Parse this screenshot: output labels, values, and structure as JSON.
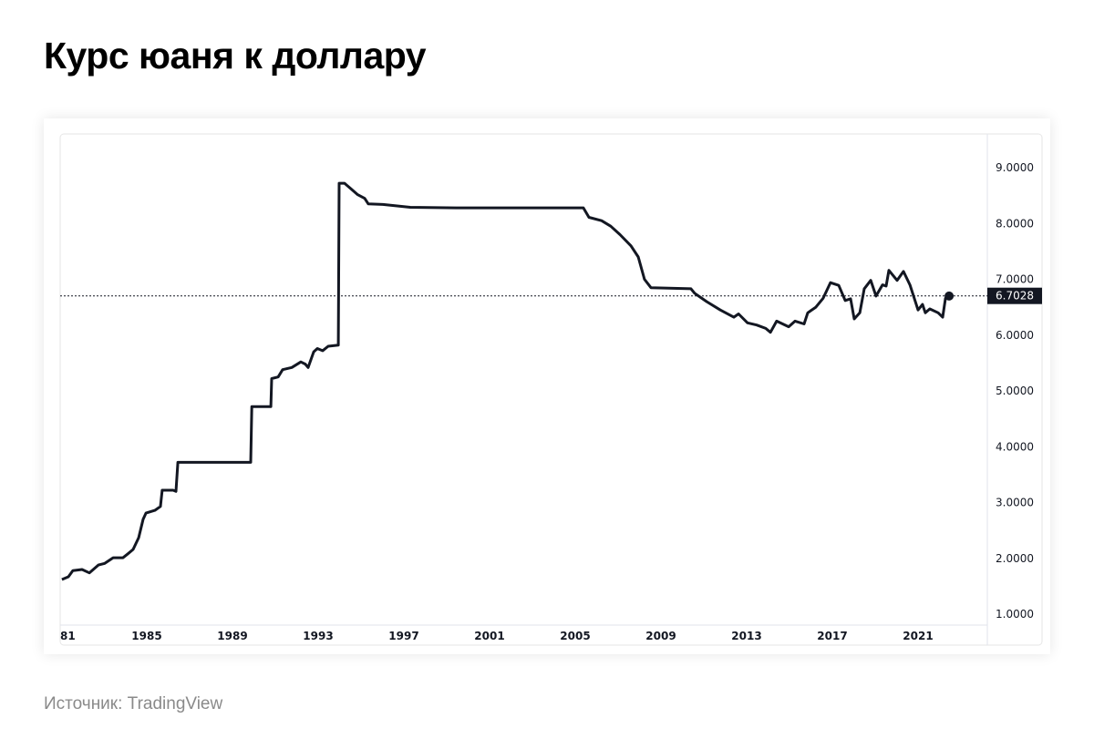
{
  "title": "Курс юаня к доллару",
  "source": "Источник: TradingView",
  "chart_data": {
    "type": "line",
    "title": "Курс юаня к доллару",
    "xlabel": "",
    "ylabel": "",
    "x_tick_labels": [
      "81",
      "1985",
      "1989",
      "1993",
      "1997",
      "2001",
      "2005",
      "2009",
      "2013",
      "2017",
      "2021"
    ],
    "x_tick_years": [
      1981,
      1985,
      1989,
      1993,
      1997,
      2001,
      2005,
      2009,
      2013,
      2017,
      2021
    ],
    "y_tick_labels": [
      "9.0000",
      "8.0000",
      "7.0000",
      "6.0000",
      "5.0000",
      "4.0000",
      "3.0000",
      "2.0000",
      "1.0000"
    ],
    "y_ticks": [
      9,
      8,
      7,
      6,
      5,
      4,
      3,
      2,
      1
    ],
    "xlim": [
      1981,
      2024.5
    ],
    "ylim": [
      1,
      9
    ],
    "grid": false,
    "line_color": "#131722",
    "last_value_label": "6.7028",
    "last_value": 6.7028,
    "series": [
      {
        "points": [
          [
            1981.04,
            1.62
          ],
          [
            1981.34,
            1.67
          ],
          [
            1981.55,
            1.78
          ],
          [
            1981.98,
            1.8
          ],
          [
            1982.32,
            1.74
          ],
          [
            1982.74,
            1.88
          ],
          [
            1983.04,
            1.91
          ],
          [
            1983.43,
            2.01
          ],
          [
            1983.89,
            2.01
          ],
          [
            1984.11,
            2.08
          ],
          [
            1984.36,
            2.16
          ],
          [
            1984.62,
            2.37
          ],
          [
            1984.83,
            2.7
          ],
          [
            1984.96,
            2.81
          ],
          [
            1985.38,
            2.86
          ],
          [
            1985.64,
            2.93
          ],
          [
            1985.72,
            3.22
          ],
          [
            1986.23,
            3.22
          ],
          [
            1986.36,
            3.2
          ],
          [
            1986.45,
            3.72
          ],
          [
            1989.85,
            3.72
          ],
          [
            1989.9,
            4.72
          ],
          [
            1990.79,
            4.72
          ],
          [
            1990.83,
            5.22
          ],
          [
            1991.13,
            5.25
          ],
          [
            1991.34,
            5.38
          ],
          [
            1991.77,
            5.42
          ],
          [
            1992.19,
            5.52
          ],
          [
            1992.4,
            5.48
          ],
          [
            1992.53,
            5.42
          ],
          [
            1992.79,
            5.7
          ],
          [
            1992.96,
            5.76
          ],
          [
            1993.21,
            5.72
          ],
          [
            1993.47,
            5.8
          ],
          [
            1993.94,
            5.82
          ],
          [
            1993.98,
            8.72
          ],
          [
            1994.23,
            8.72
          ],
          [
            1994.53,
            8.62
          ],
          [
            1994.83,
            8.52
          ],
          [
            1995.17,
            8.45
          ],
          [
            1995.34,
            8.35
          ],
          [
            1996.02,
            8.34
          ],
          [
            1997.3,
            8.29
          ],
          [
            1999.43,
            8.28
          ],
          [
            2005.38,
            8.28
          ],
          [
            2005.64,
            8.11
          ],
          [
            2006.23,
            8.05
          ],
          [
            2006.66,
            7.95
          ],
          [
            2007.09,
            7.8
          ],
          [
            2007.6,
            7.6
          ],
          [
            2007.94,
            7.4
          ],
          [
            2008.23,
            7.0
          ],
          [
            2008.53,
            6.85
          ],
          [
            2010.4,
            6.83
          ],
          [
            2010.57,
            6.75
          ],
          [
            2011.13,
            6.6
          ],
          [
            2011.77,
            6.45
          ],
          [
            2012.4,
            6.32
          ],
          [
            2012.62,
            6.38
          ],
          [
            2013.04,
            6.22
          ],
          [
            2013.47,
            6.18
          ],
          [
            2013.89,
            6.12
          ],
          [
            2014.11,
            6.05
          ],
          [
            2014.4,
            6.25
          ],
          [
            2014.96,
            6.15
          ],
          [
            2015.26,
            6.25
          ],
          [
            2015.68,
            6.2
          ],
          [
            2015.85,
            6.4
          ],
          [
            2016.23,
            6.5
          ],
          [
            2016.57,
            6.66
          ],
          [
            2016.91,
            6.94
          ],
          [
            2017.3,
            6.89
          ],
          [
            2017.6,
            6.62
          ],
          [
            2017.85,
            6.65
          ],
          [
            2018.02,
            6.29
          ],
          [
            2018.28,
            6.4
          ],
          [
            2018.49,
            6.83
          ],
          [
            2018.79,
            6.98
          ],
          [
            2019.04,
            6.7
          ],
          [
            2019.34,
            6.9
          ],
          [
            2019.51,
            6.88
          ],
          [
            2019.64,
            7.16
          ],
          [
            2020.02,
            6.98
          ],
          [
            2020.32,
            7.14
          ],
          [
            2020.62,
            6.9
          ],
          [
            2021.0,
            6.45
          ],
          [
            2021.21,
            6.55
          ],
          [
            2021.34,
            6.4
          ],
          [
            2021.55,
            6.47
          ],
          [
            2021.94,
            6.4
          ],
          [
            2022.15,
            6.32
          ],
          [
            2022.28,
            6.66
          ],
          [
            2022.45,
            6.7
          ]
        ]
      }
    ]
  }
}
